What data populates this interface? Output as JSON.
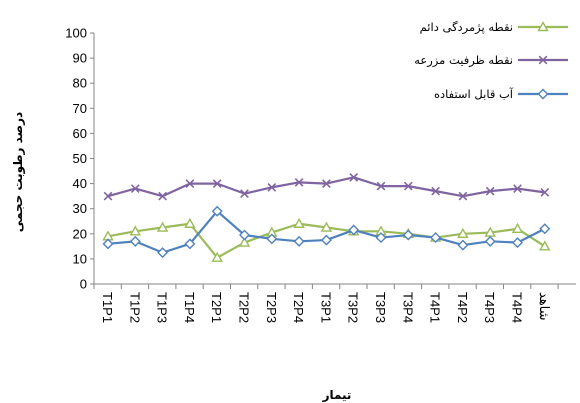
{
  "chart_data": {
    "type": "line",
    "title": "",
    "xlabel": "تیمار",
    "ylabel": "درصد رطوبت حجمی",
    "ylim": [
      0,
      100
    ],
    "yticks": [
      0,
      10,
      20,
      30,
      40,
      50,
      60,
      70,
      80,
      90,
      100
    ],
    "grid": false,
    "legend_position": "top-right",
    "categories": [
      "T1P1",
      "T1P2",
      "T1P3",
      "T1P4",
      "T2P1",
      "T2P2",
      "T2P3",
      "T2P4",
      "T3P1",
      "T3P2",
      "T3P3",
      "T3P4",
      "T4P1",
      "T4P2",
      "T4P3",
      "T4P4",
      "شاهد"
    ],
    "series": [
      {
        "name": "نقطه پژمردگی دائم",
        "color": "#9BBB59",
        "marker": "triangle",
        "values": [
          19,
          21,
          22.5,
          24,
          10.5,
          16.5,
          20.5,
          24,
          22.5,
          21,
          21,
          20,
          18.5,
          20,
          20.5,
          22,
          15
        ]
      },
      {
        "name": "نقطه ظرفیت مزرعه",
        "color": "#8064A2",
        "marker": "x",
        "values": [
          35,
          38,
          35,
          40,
          40,
          36,
          38.5,
          40.5,
          40,
          42.5,
          39,
          39,
          37,
          35,
          37,
          38,
          36.5
        ]
      },
      {
        "name": "آب قابل استفاده",
        "color": "#4F81BD",
        "marker": "diamond",
        "values": [
          16,
          17,
          12.5,
          16,
          29,
          19.5,
          18,
          17,
          17.5,
          21.5,
          18.5,
          19.5,
          18.5,
          15.5,
          17,
          16.5,
          22
        ]
      }
    ]
  }
}
